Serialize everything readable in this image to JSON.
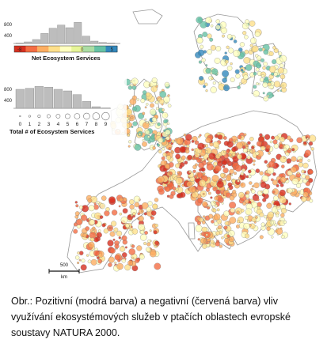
{
  "legend_net": {
    "title": "Net Ecosystem Services",
    "hist_ticks": [
      "800",
      "400"
    ],
    "scale_min": "-8",
    "scale_zero": "0",
    "scale_max": "5",
    "hist_counts": [
      20,
      60,
      150,
      380,
      580,
      700,
      600,
      800,
      280,
      90,
      40,
      20
    ],
    "colors": [
      "#d7301f",
      "#f46d43",
      "#fdae61",
      "#fee08b",
      "#ffffbf",
      "#e6f598",
      "#abdda4",
      "#66c2a5",
      "#3288bd"
    ]
  },
  "legend_total": {
    "title": "Total # of Ecosystem Services",
    "hist_ticks": [
      "800",
      "400"
    ],
    "categories": [
      "0",
      "1",
      "2",
      "3",
      "4",
      "5",
      "6",
      "7",
      "8",
      "9"
    ],
    "hist_counts": [
      720,
      760,
      830,
      800,
      720,
      660,
      520,
      260,
      60,
      15
    ]
  },
  "scale_bar": {
    "value": "500",
    "unit": "km"
  },
  "map_colors": {
    "strong_negative": "#d7301f",
    "negative": "#f46d43",
    "mild_negative": "#fdae61",
    "neutral": "#fee08b",
    "light": "#ffffbf",
    "positive": "#66c2a5",
    "strong_positive": "#3288bd",
    "land_outline": "#999999"
  },
  "caption": "Obr.: Pozitivní (modrá barva) a negativní (červená barva) vliv využívání ekosystémových služeb v ptačích oblastech evropské soustavy NATURA 2000."
}
